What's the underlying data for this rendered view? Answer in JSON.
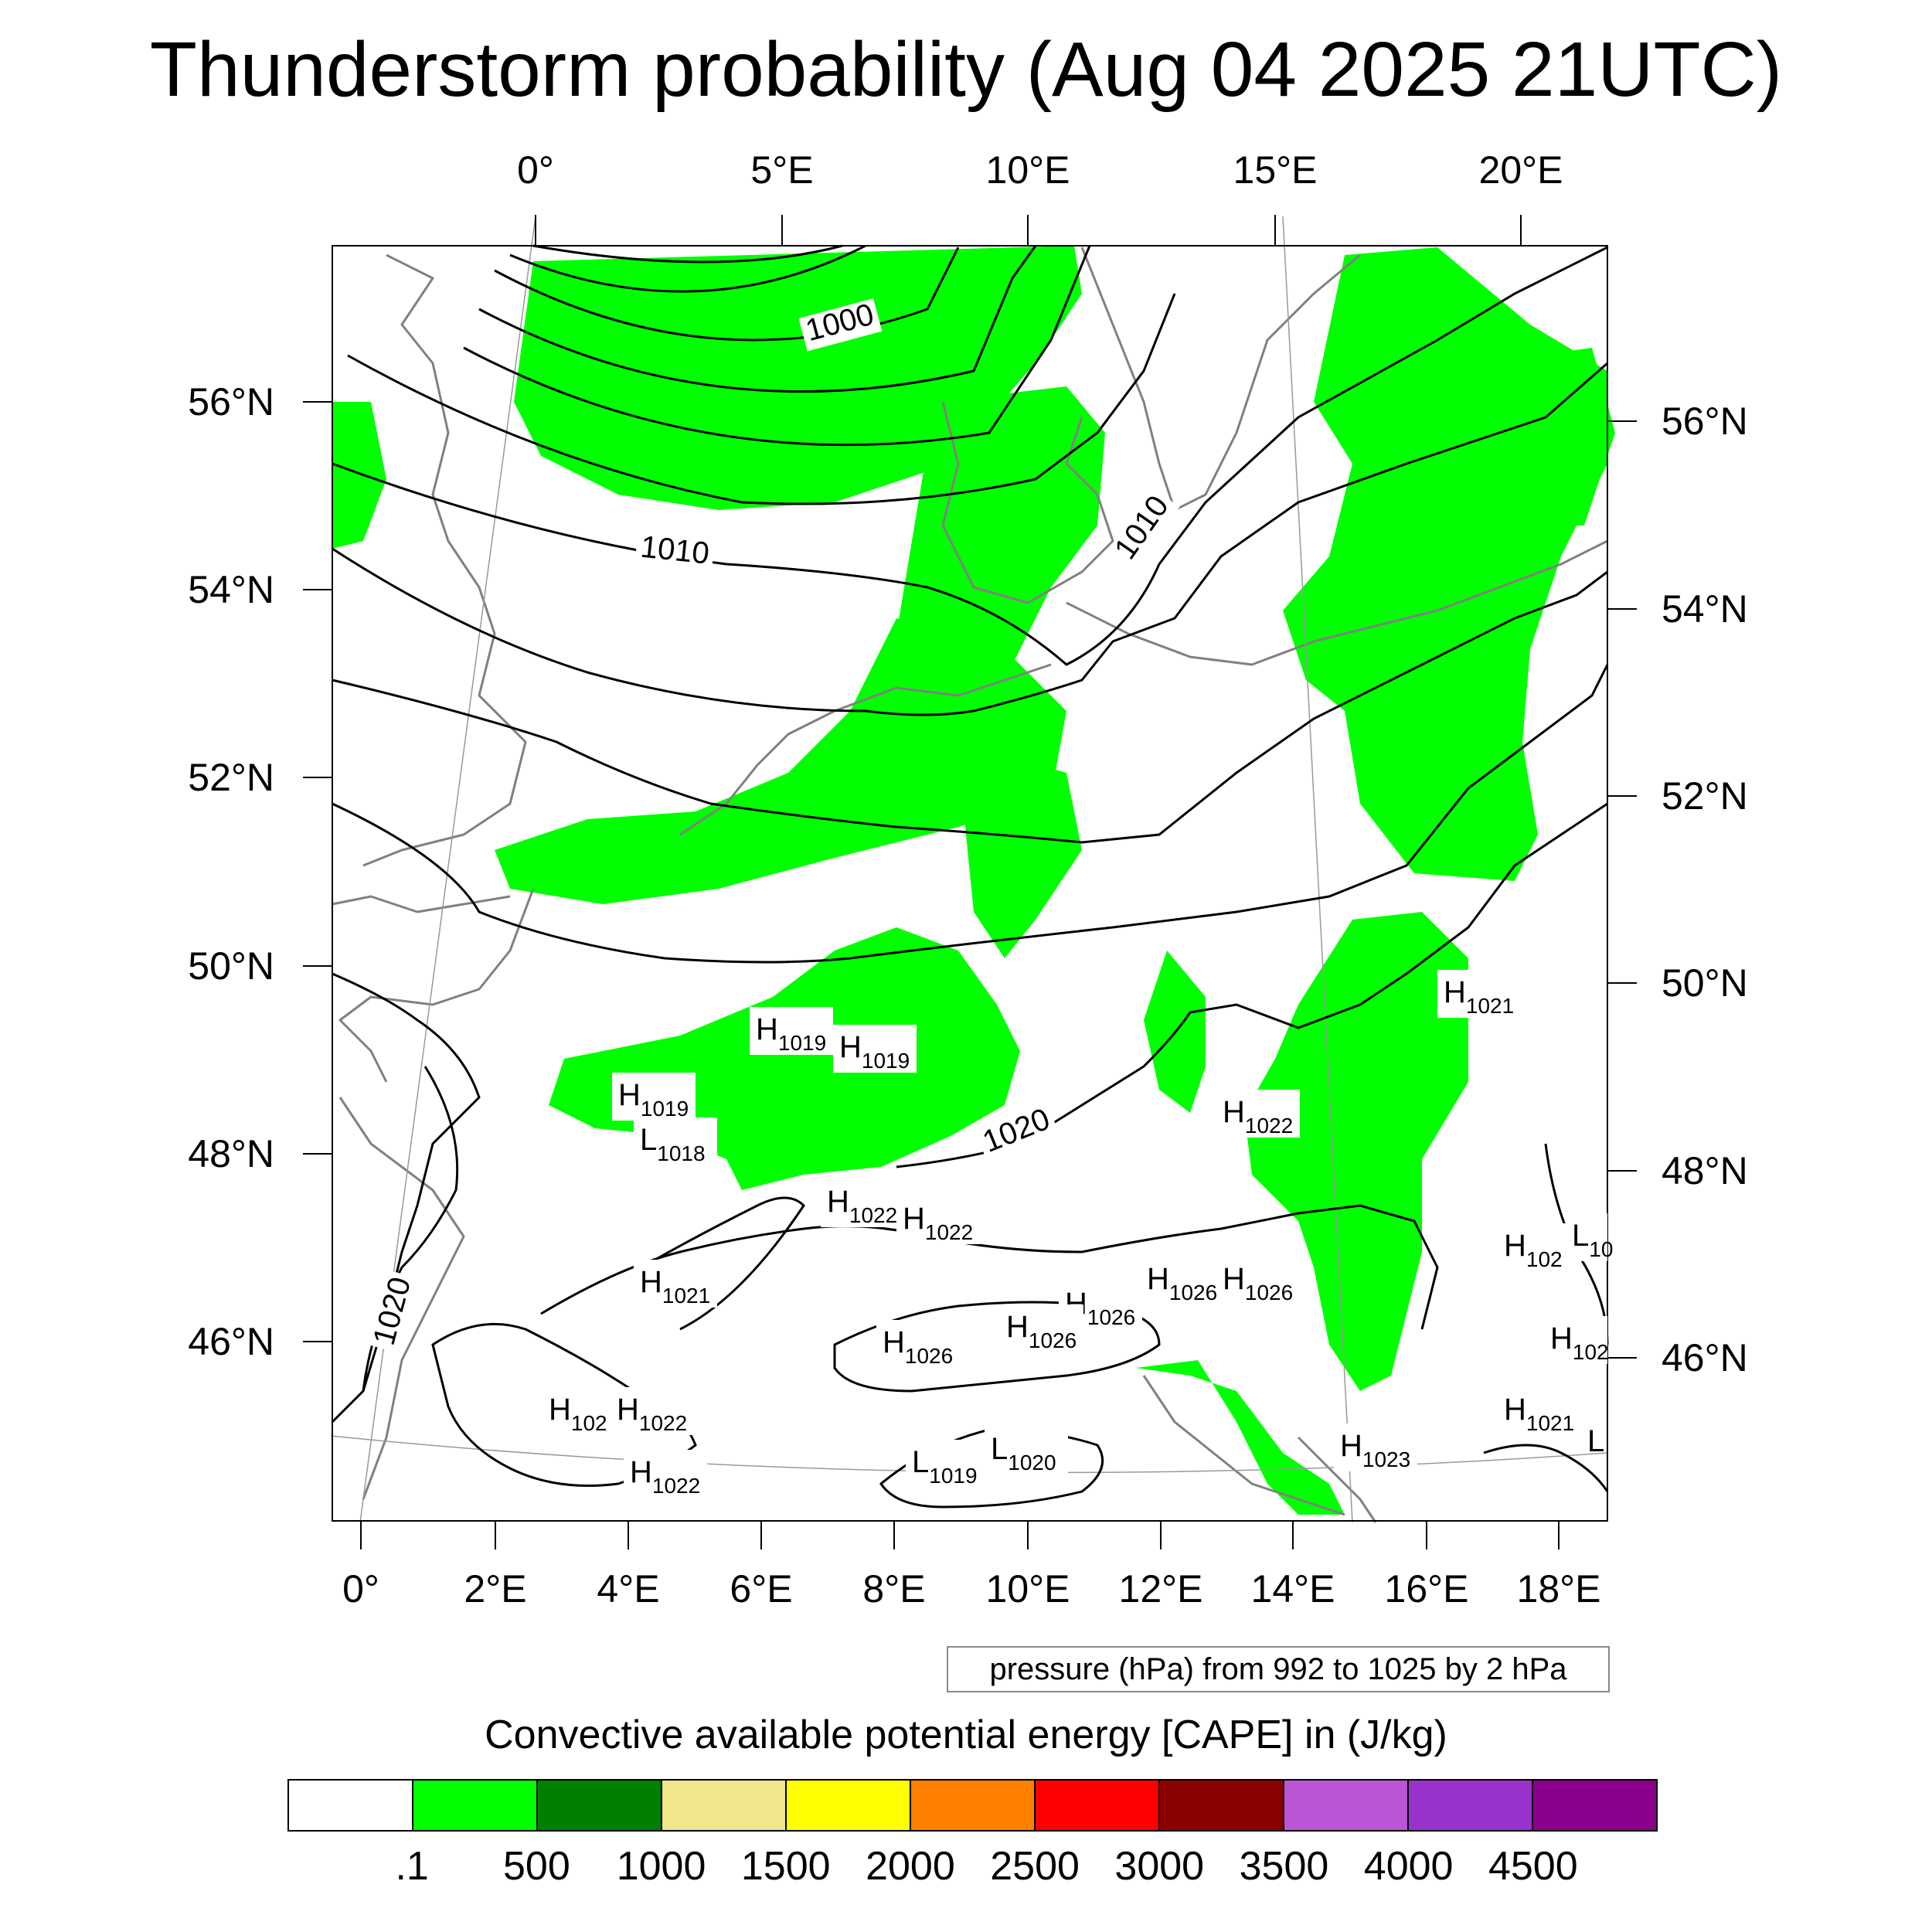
{
  "title": "Thunderstorm probability (Aug 04 2025 21UTC)",
  "top_axis": {
    "labels": [
      "0°",
      "5°E",
      "10°E",
      "15°E",
      "20°E"
    ]
  },
  "bottom_axis": {
    "labels": [
      "0°",
      "2°E",
      "4°E",
      "6°E",
      "8°E",
      "10°E",
      "12°E",
      "14°E",
      "16°E",
      "18°E"
    ]
  },
  "left_axis": {
    "labels": [
      "56°N",
      "54°N",
      "52°N",
      "50°N",
      "48°N",
      "46°N"
    ]
  },
  "right_axis": {
    "labels": [
      "56°N",
      "54°N",
      "52°N",
      "50°N",
      "48°N",
      "46°N"
    ]
  },
  "isobar_labels": [
    "1000",
    "1010",
    "1010",
    "1020",
    "1020"
  ],
  "pressure_centers": [
    {
      "letter": "H",
      "value": "1019"
    },
    {
      "letter": "H",
      "value": "1019"
    },
    {
      "letter": "H",
      "value": "1019"
    },
    {
      "letter": "L",
      "value": "1018"
    },
    {
      "letter": "H",
      "value": "1022"
    },
    {
      "letter": "H",
      "value": "1022"
    },
    {
      "letter": "H",
      "value": "1021"
    },
    {
      "letter": "H",
      "value": "1022"
    },
    {
      "letter": "H",
      "value": "1021"
    },
    {
      "letter": "H",
      "value": "1026"
    },
    {
      "letter": "H",
      "value": "1026"
    },
    {
      "letter": "H",
      "value": "1026"
    },
    {
      "letter": "H",
      "value": "1026"
    },
    {
      "letter": "H",
      "value": "1026"
    },
    {
      "letter": "H",
      "value": "102"
    },
    {
      "letter": "H",
      "value": "1022"
    },
    {
      "letter": "H",
      "value": "1022"
    },
    {
      "letter": "L",
      "value": "1019"
    },
    {
      "letter": "L",
      "value": "1020"
    },
    {
      "letter": "H",
      "value": "1023"
    },
    {
      "letter": "H",
      "value": "102"
    },
    {
      "letter": "L",
      "value": "10"
    },
    {
      "letter": "H",
      "value": "102"
    },
    {
      "letter": "H",
      "value": "1021"
    },
    {
      "letter": "L",
      "value": ""
    }
  ],
  "pressure_note": "pressure (hPa) from 992 to 1025 by 2 hPa",
  "colorbar": {
    "title": "Convective available potential energy [CAPE] in (J/kg)",
    "colors": [
      "#ffffff",
      "#00ff00",
      "#008000",
      "#f0e68c",
      "#ffff00",
      "#ff8000",
      "#ff0000",
      "#8b0000",
      "#ba55d3",
      "#9932cc",
      "#8b008b"
    ],
    "labels": [
      ".1",
      "500",
      "1000",
      "1500",
      "2000",
      "2500",
      "3000",
      "3500",
      "4000",
      "4500"
    ]
  },
  "colors": {
    "cape_fill": "#00ff00",
    "coastline": "#808080",
    "isobar": "#000000"
  }
}
